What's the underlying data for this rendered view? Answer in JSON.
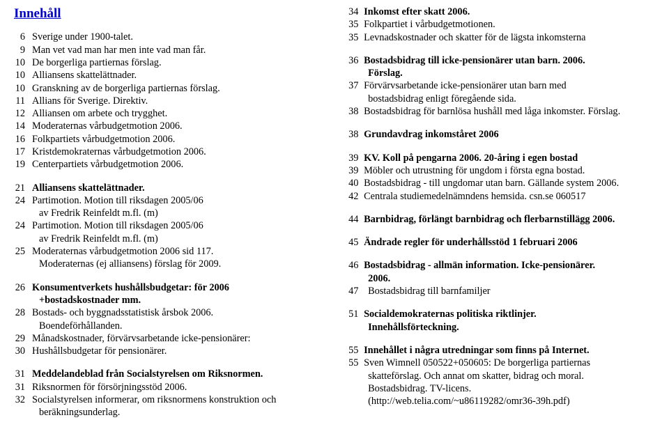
{
  "title": "Innehåll",
  "left": {
    "g1": [
      {
        "n": " 6",
        "t": "Sverige under 1900-talet.",
        "b": false
      },
      {
        "n": " 9",
        "t": "Man vet vad man har men inte vad man får.",
        "b": false
      },
      {
        "n": "10",
        "t": "De borgerliga partiernas förslag.",
        "b": false
      },
      {
        "n": "10",
        "t": "Alliansens skattelättnader.",
        "b": false
      },
      {
        "n": "10",
        "t": "Granskning av de borgerliga partiernas förslag.",
        "b": false
      },
      {
        "n": "11",
        "t": "Allians för Sverige. Direktiv.",
        "b": false
      },
      {
        "n": "12",
        "t": "Alliansen om arbete och trygghet.",
        "b": false
      },
      {
        "n": "14",
        "t": "Moderaternas vårbudgetmotion 2006.",
        "b": false
      },
      {
        "n": "16",
        "t": "Folkpartiets vårbudgetmotion 2006.",
        "b": false
      },
      {
        "n": "17",
        "t": "Kristdemokraternas vårbudgetmotion 2006.",
        "b": false
      },
      {
        "n": "19",
        "t": "Centerpartiets vårbudgetmotion 2006.",
        "b": false
      }
    ],
    "g2h": {
      "n": "21",
      "t": "Alliansens skattelättnader."
    },
    "g2": [
      {
        "n": "24",
        "t": "Partimotion. Motion till riksdagen 2005/06",
        "cont": "av Fredrik Reinfeldt m.fl. (m)"
      },
      {
        "n": "24",
        "t": "Partimotion. Motion till riksdagen 2005/06",
        "cont": "av Fredrik Reinfeldt m.fl. (m)"
      },
      {
        "n": "25",
        "t": "Moderaternas vårbudgetmotion 2006 sid 117.",
        "cont": "Moderaternas (ej alliansens) förslag för 2009."
      }
    ],
    "g3h": {
      "n": "26",
      "t": "Konsumentverkets hushållsbudgetar: för 2006",
      "cont": "+bostadskostnader mm."
    },
    "g3": [
      {
        "n": "28",
        "t": "Bostads- och byggnadsstatistisk årsbok 2006.",
        "cont": "Boendeförhållanden."
      },
      {
        "n": "29",
        "t": "Månadskostnader, förvärvsarbetande icke-pensionärer:"
      },
      {
        "n": "30",
        "t": "Hushållsbudgetar för pensionärer."
      }
    ],
    "g4h": {
      "n": "31",
      "t": "Meddelandeblad från Socialstyrelsen om Riksnormen."
    },
    "g4": [
      {
        "n": "31",
        "t": "Riksnormen för försörjningsstöd 2006."
      },
      {
        "n": "32",
        "t": "Socialstyrelsen informerar, om riksnormens konstruktion och",
        "cont": "beräkningsunderlag."
      }
    ]
  },
  "right": {
    "s1h": {
      "n": "34",
      "t": "Inkomst efter skatt 2006."
    },
    "s1": [
      {
        "n": "35",
        "t": "Folkpartiet i vårbudgetmotionen."
      },
      {
        "n": "35",
        "t": "Levnadskostnader och skatter för de lägsta inkomsterna"
      }
    ],
    "s2h": {
      "n": "36",
      "t": "Bostadsbidrag till icke-pensionärer utan barn. 2006.",
      "cont": "Förslag."
    },
    "s2": [
      {
        "n": "37",
        "t": "Förvärvsarbetande icke-pensionärer utan barn med",
        "cont": "bostadsbidrag enligt föregående sida."
      },
      {
        "n": "38",
        "t": "Bostadsbidrag för barnlösa hushåll med låga inkomster. Förslag."
      }
    ],
    "s3h": {
      "n": "38",
      "t": "Grundavdrag inkomståret 2006"
    },
    "s4h": {
      "n": "39",
      "t": "KV. Koll på pengarna 2006. 20-åring i egen bostad"
    },
    "s4": [
      {
        "n": "39",
        "t": "Möbler och utrustning för ungdom i första egna bostad."
      },
      {
        "n": "40",
        "t": "Bostadsbidrag - till ungdomar utan barn. Gällande system 2006."
      },
      {
        "n": "42",
        "t": "Centrala studiemedelnämndens hemsida. csn.se 060517"
      }
    ],
    "s5h": {
      "n": "44",
      "t": "Barnbidrag, förlängt barnbidrag och flerbarnstillägg 2006."
    },
    "s6h": {
      "n": "45",
      "t": "Ändrade regler för underhållsstöd 1 februari 2006"
    },
    "s7h": {
      "n": "46",
      "t": "Bostadsbidrag - allmän information. Icke-pensionärer.",
      "cont": "2006."
    },
    "s7": [
      {
        "n": "47",
        "t": "Bostadsbidrag till barnfamiljer"
      }
    ],
    "s8h": {
      "n": "51",
      "t": "Socialdemokraternas politiska riktlinjer.",
      "cont": "Innehållsförteckning."
    },
    "s9h": {
      "n": "55",
      "t": "Innehållet i några utredningar som finns på Internet."
    },
    "s9": [
      {
        "n": "55",
        "t": "Sven Wimnell 050522+050605: De borgerliga partiernas",
        "cont1": "skatteförslag. Och annat om skatter, bidrag och moral.",
        "cont2": "Bostadsbidrag. TV-licens.",
        "cont3": "(http://web.telia.com/~u86119282/omr36-39h.pdf)"
      }
    ]
  }
}
